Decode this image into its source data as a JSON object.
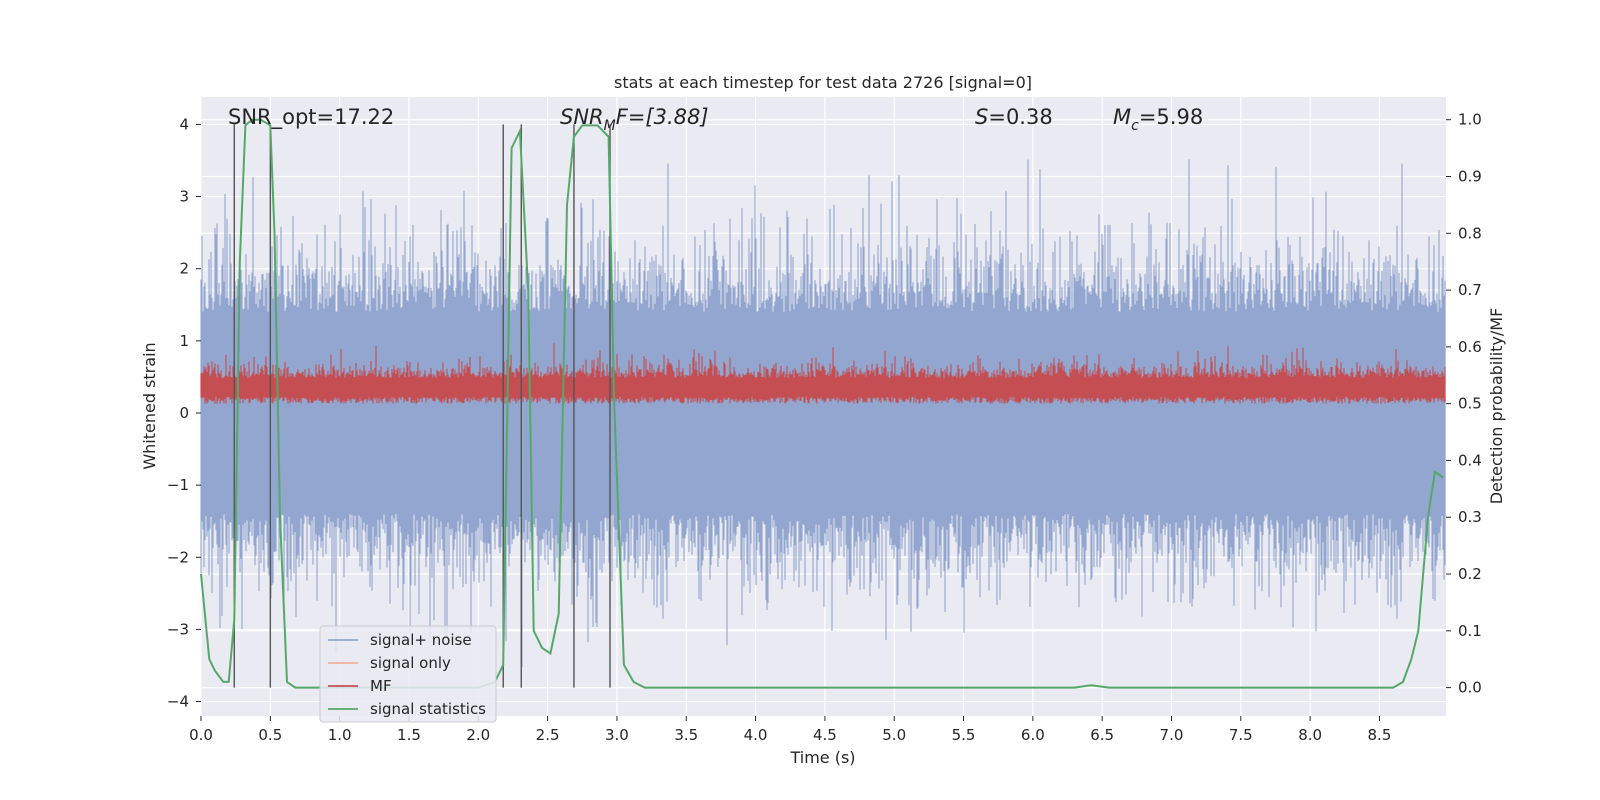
{
  "chart_data": {
    "type": "line",
    "title": "stats at each timestep for test data 2726 [signal=0]",
    "xlabel": "Time (s)",
    "ylabel": "Whitened strain",
    "ylabel_right": "Detection probability/MF",
    "xlim": [
      0.0,
      8.98
    ],
    "ylim": [
      -4.2,
      4.38
    ],
    "ylim_right": [
      -0.05,
      1.04
    ],
    "x_ticks": [
      0.0,
      0.5,
      1.0,
      1.5,
      2.0,
      2.5,
      3.0,
      3.5,
      4.0,
      4.5,
      5.0,
      5.5,
      6.0,
      6.5,
      7.0,
      7.5,
      8.0,
      8.5
    ],
    "x_tick_labels": [
      "0.0",
      "0.5",
      "1.0",
      "1.5",
      "2.0",
      "2.5",
      "3.0",
      "3.5",
      "4.0",
      "4.5",
      "5.0",
      "5.5",
      "6.0",
      "6.5",
      "7.0",
      "7.5",
      "8.0",
      "8.5"
    ],
    "y_ticks": [
      -4,
      -3,
      -2,
      -1,
      0,
      1,
      2,
      3,
      4
    ],
    "y_tick_labels": [
      "−4",
      "−3",
      "−2",
      "−1",
      "0",
      "1",
      "2",
      "3",
      "4"
    ],
    "y_ticks_right": [
      0.0,
      0.1,
      0.2,
      0.3,
      0.4,
      0.5,
      0.6,
      0.7,
      0.8,
      0.9,
      1.0
    ],
    "y_tick_labels_right": [
      "0.0",
      "0.1",
      "0.2",
      "0.3",
      "0.4",
      "0.5",
      "0.6",
      "0.7",
      "0.8",
      "0.9",
      "1.0"
    ],
    "grid": true,
    "annotations": {
      "snr_opt": "SNR_opt=17.22",
      "snr_mf_sym": "SNR",
      "snr_mf_sub": "M",
      "snr_mf_rest": "F=[3.88]",
      "s_sym": "S",
      "s_rest": "=0.38",
      "mc_sym": "M",
      "mc_sub": "c",
      "mc_rest": "=5.98"
    },
    "detection_window_edges": [
      0.24,
      0.5,
      2.18,
      2.31,
      2.69,
      2.95
    ],
    "series": [
      {
        "name": "signal+ noise",
        "color": "#92a6cf",
        "axis": "left",
        "description": "whitened strain noise, envelope approx ±2.5 with peaks near ±3.5",
        "envelope": [
          2.5,
          -2.5
        ]
      },
      {
        "name": "signal only",
        "color": "#f0b09a",
        "axis": "left",
        "values": []
      },
      {
        "name": "MF",
        "color": "#c44e52",
        "axis": "right",
        "description": "matched-filter output, range approx 0.5–0.6",
        "envelope": [
          0.5,
          0.6
        ]
      },
      {
        "name": "signal statistics",
        "color": "#55a868",
        "axis": "right",
        "x": [
          0.0,
          0.06,
          0.1,
          0.16,
          0.2,
          0.24,
          0.28,
          0.32,
          0.37,
          0.43,
          0.5,
          0.53,
          0.57,
          0.62,
          0.68,
          1.0,
          2.0,
          2.12,
          2.18,
          2.24,
          2.3,
          2.36,
          2.4,
          2.46,
          2.52,
          2.58,
          2.64,
          2.69,
          2.75,
          2.8,
          2.86,
          2.9,
          2.94,
          2.98,
          3.05,
          3.12,
          3.2,
          3.5,
          4.0,
          5.0,
          6.0,
          6.3,
          6.42,
          6.55,
          7.0,
          8.0,
          8.6,
          8.67,
          8.73,
          8.78,
          8.85,
          8.9,
          8.96
        ],
        "values": [
          0.2,
          0.05,
          0.03,
          0.01,
          0.01,
          0.12,
          0.75,
          0.99,
          1.0,
          1.0,
          0.99,
          0.8,
          0.3,
          0.01,
          0.0,
          0.0,
          0.0,
          0.01,
          0.04,
          0.95,
          0.98,
          0.7,
          0.1,
          0.07,
          0.06,
          0.13,
          0.85,
          0.97,
          0.99,
          0.99,
          0.99,
          0.98,
          0.97,
          0.5,
          0.04,
          0.01,
          0.0,
          0.0,
          0.0,
          0.0,
          0.0,
          0.0,
          0.004,
          0.0,
          0.0,
          0.0,
          0.0,
          0.01,
          0.05,
          0.1,
          0.3,
          0.38,
          0.37
        ]
      }
    ],
    "legend_position": "lower-left"
  }
}
